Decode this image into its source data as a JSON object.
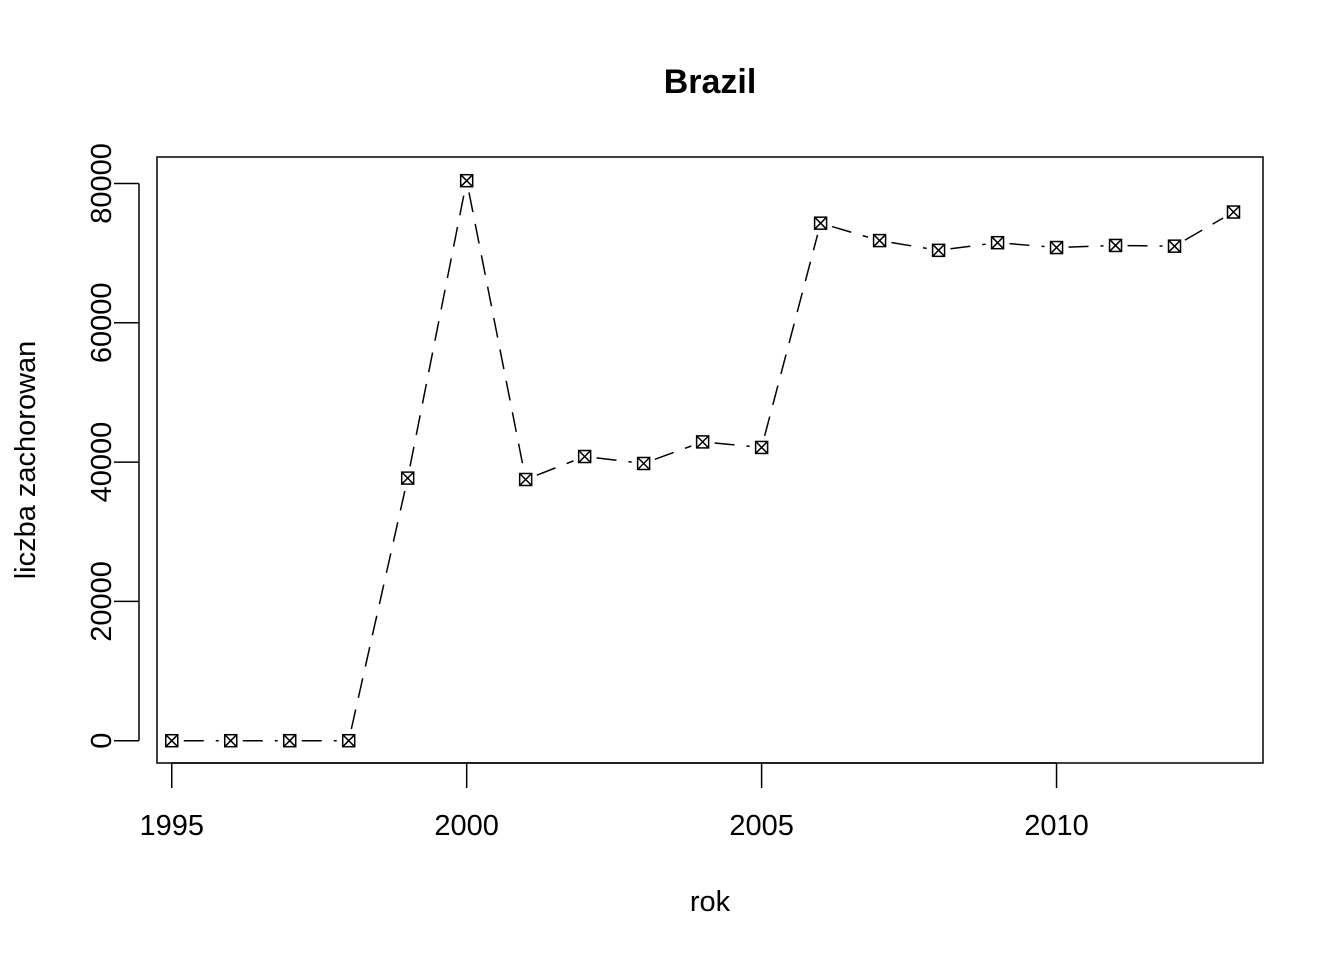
{
  "chart_data": {
    "type": "line",
    "title": "Brazil",
    "xlabel": "rok",
    "ylabel": "liczba zachorowan",
    "x": [
      1995,
      1996,
      1997,
      1998,
      1999,
      2000,
      2001,
      2002,
      2003,
      2004,
      2005,
      2006,
      2007,
      2008,
      2009,
      2010,
      2011,
      2012,
      2013
    ],
    "series": [
      {
        "values": [
          0,
          0,
          0,
          0,
          37700,
          80400,
          37500,
          40800,
          39800,
          42900,
          42100,
          74300,
          71800,
          70400,
          71500,
          70800,
          71100,
          71000,
          75900
        ]
      }
    ],
    "xlim": [
      1994.75,
      2013.5
    ],
    "ylim": [
      -3200,
      83800
    ],
    "xticks": [
      "1995",
      "2000",
      "2005",
      "2010"
    ],
    "yticks": [
      "0",
      "20000",
      "40000",
      "60000",
      "80000"
    ],
    "grid": false,
    "marker": "boxed-x",
    "line_style": "dashed",
    "line_color": "#000000"
  }
}
